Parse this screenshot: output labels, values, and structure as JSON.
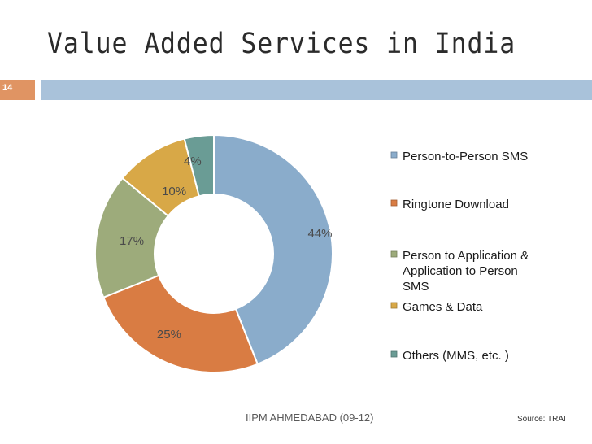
{
  "slide": {
    "title": "Value Added Services in India",
    "number": "14",
    "footer": "IIPM AHMEDABAD (09-12)",
    "source": "Source:  TRAI"
  },
  "chart_data": {
    "type": "pie",
    "title": "",
    "categories": [
      "Person-to-Person SMS",
      "Ringtone Download",
      "Person to Application & Application to Person SMS",
      "Games & Data",
      "Others (MMS, etc. )"
    ],
    "values": [
      44,
      25,
      17,
      10,
      4
    ],
    "data_labels": [
      "44%",
      "25%",
      "17%",
      "10%",
      "4%"
    ],
    "legend_lines": [
      [
        "Person-to-Person SMS"
      ],
      [
        "Ringtone Download"
      ],
      [
        "Person to Application &",
        "Application to Person",
        "SMS"
      ],
      [
        "Games & Data"
      ],
      [
        "Others (MMS, etc. )"
      ]
    ],
    "colors": [
      "#8aaccb",
      "#d97c43",
      "#9dab7b",
      "#d8a847",
      "#6a9c95"
    ],
    "legend_position": "right"
  }
}
